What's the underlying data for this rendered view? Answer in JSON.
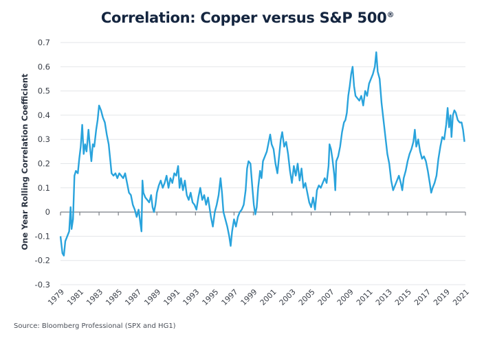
{
  "title": "Correlation: Copper versus S&P 500",
  "title_mark": "®",
  "source": "Source: Bloomberg Professional (SPX and HG1)",
  "line_color": "#29a3dc",
  "chart_data": {
    "type": "line",
    "title": "Correlation: Copper versus S&P 500®",
    "xlabel": "",
    "ylabel": "One Year Rolling Correlation Coefficient",
    "ylim": [
      -0.3,
      0.7
    ],
    "xlim": [
      1979,
      2021
    ],
    "yticks": [
      "0.7",
      "0.6",
      "0.5",
      "0.4",
      "0.3",
      "0.2",
      "0.1",
      "0",
      "-0.1",
      "-0.2",
      "-0.3"
    ],
    "ytick_values": [
      0.7,
      0.6,
      0.5,
      0.4,
      0.3,
      0.2,
      0.1,
      0,
      -0.1,
      -0.2,
      -0.3
    ],
    "xticks": [
      "1979",
      "1981",
      "1983",
      "1985",
      "1987",
      "1989",
      "1991",
      "1993",
      "1995",
      "1997",
      "1999",
      "2001",
      "2003",
      "2005",
      "2007",
      "2009",
      "2011",
      "2013",
      "2015",
      "2017",
      "2019",
      "2021"
    ],
    "grid": true,
    "legend": "none",
    "series": [
      {
        "name": "One Year Rolling Correlation (Copper vs S&P 500)",
        "points": [
          [
            1979.0,
            -0.1
          ],
          [
            1979.2,
            -0.17
          ],
          [
            1979.35,
            -0.18
          ],
          [
            1979.5,
            -0.12
          ],
          [
            1979.7,
            -0.1
          ],
          [
            1979.9,
            -0.08
          ],
          [
            1980.05,
            0.02
          ],
          [
            1980.15,
            -0.07
          ],
          [
            1980.3,
            -0.03
          ],
          [
            1980.45,
            0.15
          ],
          [
            1980.6,
            0.17
          ],
          [
            1980.8,
            0.16
          ],
          [
            1980.95,
            0.22
          ],
          [
            1981.1,
            0.27
          ],
          [
            1981.25,
            0.36
          ],
          [
            1981.4,
            0.24
          ],
          [
            1981.55,
            0.28
          ],
          [
            1981.7,
            0.25
          ],
          [
            1981.9,
            0.34
          ],
          [
            1982.05,
            0.27
          ],
          [
            1982.2,
            0.21
          ],
          [
            1982.35,
            0.28
          ],
          [
            1982.5,
            0.27
          ],
          [
            1982.7,
            0.34
          ],
          [
            1982.85,
            0.38
          ],
          [
            1983.0,
            0.44
          ],
          [
            1983.2,
            0.42
          ],
          [
            1983.4,
            0.39
          ],
          [
            1983.6,
            0.37
          ],
          [
            1983.8,
            0.32
          ],
          [
            1984.0,
            0.28
          ],
          [
            1984.15,
            0.22
          ],
          [
            1984.3,
            0.16
          ],
          [
            1984.5,
            0.15
          ],
          [
            1984.7,
            0.16
          ],
          [
            1984.9,
            0.14
          ],
          [
            1985.1,
            0.16
          ],
          [
            1985.3,
            0.15
          ],
          [
            1985.5,
            0.14
          ],
          [
            1985.7,
            0.16
          ],
          [
            1985.9,
            0.12
          ],
          [
            1986.1,
            0.08
          ],
          [
            1986.3,
            0.07
          ],
          [
            1986.5,
            0.03
          ],
          [
            1986.7,
            0.01
          ],
          [
            1986.9,
            -0.02
          ],
          [
            1987.1,
            0.01
          ],
          [
            1987.3,
            -0.05
          ],
          [
            1987.4,
            -0.08
          ],
          [
            1987.5,
            0.13
          ],
          [
            1987.6,
            0.08
          ],
          [
            1987.8,
            0.06
          ],
          [
            1988.0,
            0.05
          ],
          [
            1988.2,
            0.04
          ],
          [
            1988.4,
            0.07
          ],
          [
            1988.55,
            0.02
          ],
          [
            1988.7,
            0.0
          ],
          [
            1988.85,
            0.03
          ],
          [
            1989.0,
            0.08
          ],
          [
            1989.2,
            0.11
          ],
          [
            1989.4,
            0.13
          ],
          [
            1989.6,
            0.1
          ],
          [
            1989.8,
            0.12
          ],
          [
            1990.0,
            0.15
          ],
          [
            1990.2,
            0.1
          ],
          [
            1990.4,
            0.14
          ],
          [
            1990.6,
            0.12
          ],
          [
            1990.8,
            0.16
          ],
          [
            1991.0,
            0.15
          ],
          [
            1991.2,
            0.19
          ],
          [
            1991.35,
            0.1
          ],
          [
            1991.5,
            0.14
          ],
          [
            1991.7,
            0.09
          ],
          [
            1991.9,
            0.13
          ],
          [
            1992.1,
            0.07
          ],
          [
            1992.3,
            0.05
          ],
          [
            1992.5,
            0.08
          ],
          [
            1992.7,
            0.04
          ],
          [
            1992.9,
            0.03
          ],
          [
            1993.1,
            0.01
          ],
          [
            1993.3,
            0.06
          ],
          [
            1993.5,
            0.1
          ],
          [
            1993.7,
            0.05
          ],
          [
            1993.9,
            0.07
          ],
          [
            1994.1,
            0.03
          ],
          [
            1994.3,
            0.06
          ],
          [
            1994.45,
            0.02
          ],
          [
            1994.6,
            -0.02
          ],
          [
            1994.8,
            -0.06
          ],
          [
            1995.0,
            0.0
          ],
          [
            1995.2,
            0.03
          ],
          [
            1995.4,
            0.07
          ],
          [
            1995.6,
            0.14
          ],
          [
            1995.75,
            0.08
          ],
          [
            1995.9,
            0.0
          ],
          [
            1996.1,
            -0.03
          ],
          [
            1996.3,
            -0.06
          ],
          [
            1996.5,
            -0.1
          ],
          [
            1996.65,
            -0.14
          ],
          [
            1996.8,
            -0.08
          ],
          [
            1997.0,
            -0.03
          ],
          [
            1997.2,
            -0.06
          ],
          [
            1997.4,
            -0.02
          ],
          [
            1997.6,
            0.0
          ],
          [
            1997.8,
            0.01
          ],
          [
            1998.0,
            0.03
          ],
          [
            1998.2,
            0.09
          ],
          [
            1998.35,
            0.18
          ],
          [
            1998.5,
            0.21
          ],
          [
            1998.7,
            0.2
          ],
          [
            1998.9,
            0.1
          ],
          [
            1999.05,
            0.03
          ],
          [
            1999.2,
            -0.01
          ],
          [
            1999.35,
            0.02
          ],
          [
            1999.5,
            0.1
          ],
          [
            1999.7,
            0.17
          ],
          [
            1999.85,
            0.14
          ],
          [
            2000.0,
            0.21
          ],
          [
            2000.2,
            0.23
          ],
          [
            2000.4,
            0.25
          ],
          [
            2000.6,
            0.29
          ],
          [
            2000.75,
            0.32
          ],
          [
            2000.9,
            0.28
          ],
          [
            2001.1,
            0.26
          ],
          [
            2001.3,
            0.2
          ],
          [
            2001.5,
            0.16
          ],
          [
            2001.7,
            0.24
          ],
          [
            2001.85,
            0.3
          ],
          [
            2002.0,
            0.33
          ],
          [
            2002.2,
            0.27
          ],
          [
            2002.4,
            0.29
          ],
          [
            2002.6,
            0.24
          ],
          [
            2002.8,
            0.17
          ],
          [
            2003.0,
            0.12
          ],
          [
            2003.2,
            0.19
          ],
          [
            2003.4,
            0.15
          ],
          [
            2003.6,
            0.2
          ],
          [
            2003.8,
            0.13
          ],
          [
            2004.0,
            0.18
          ],
          [
            2004.2,
            0.1
          ],
          [
            2004.4,
            0.12
          ],
          [
            2004.6,
            0.08
          ],
          [
            2004.8,
            0.04
          ],
          [
            2005.0,
            0.02
          ],
          [
            2005.2,
            0.06
          ],
          [
            2005.4,
            0.01
          ],
          [
            2005.6,
            0.09
          ],
          [
            2005.8,
            0.11
          ],
          [
            2006.0,
            0.1
          ],
          [
            2006.2,
            0.12
          ],
          [
            2006.4,
            0.14
          ],
          [
            2006.6,
            0.12
          ],
          [
            2006.8,
            0.19
          ],
          [
            2006.9,
            0.28
          ],
          [
            2007.05,
            0.26
          ],
          [
            2007.2,
            0.22
          ],
          [
            2007.4,
            0.15
          ],
          [
            2007.5,
            0.09
          ],
          [
            2007.6,
            0.21
          ],
          [
            2007.8,
            0.23
          ],
          [
            2008.0,
            0.27
          ],
          [
            2008.2,
            0.33
          ],
          [
            2008.4,
            0.37
          ],
          [
            2008.55,
            0.38
          ],
          [
            2008.7,
            0.41
          ],
          [
            2008.85,
            0.48
          ],
          [
            2009.0,
            0.52
          ],
          [
            2009.15,
            0.57
          ],
          [
            2009.3,
            0.6
          ],
          [
            2009.45,
            0.52
          ],
          [
            2009.6,
            0.48
          ],
          [
            2009.8,
            0.47
          ],
          [
            2010.0,
            0.46
          ],
          [
            2010.2,
            0.48
          ],
          [
            2010.4,
            0.44
          ],
          [
            2010.6,
            0.5
          ],
          [
            2010.8,
            0.48
          ],
          [
            2011.0,
            0.53
          ],
          [
            2011.2,
            0.55
          ],
          [
            2011.4,
            0.57
          ],
          [
            2011.6,
            0.6
          ],
          [
            2011.75,
            0.66
          ],
          [
            2011.9,
            0.58
          ],
          [
            2012.1,
            0.55
          ],
          [
            2012.3,
            0.45
          ],
          [
            2012.5,
            0.38
          ],
          [
            2012.7,
            0.31
          ],
          [
            2012.9,
            0.24
          ],
          [
            2013.1,
            0.2
          ],
          [
            2013.3,
            0.13
          ],
          [
            2013.5,
            0.09
          ],
          [
            2013.7,
            0.11
          ],
          [
            2013.9,
            0.13
          ],
          [
            2014.1,
            0.15
          ],
          [
            2014.3,
            0.12
          ],
          [
            2014.45,
            0.09
          ],
          [
            2014.6,
            0.14
          ],
          [
            2014.8,
            0.17
          ],
          [
            2015.0,
            0.21
          ],
          [
            2015.2,
            0.24
          ],
          [
            2015.4,
            0.26
          ],
          [
            2015.6,
            0.29
          ],
          [
            2015.75,
            0.34
          ],
          [
            2015.9,
            0.27
          ],
          [
            2016.1,
            0.3
          ],
          [
            2016.3,
            0.25
          ],
          [
            2016.5,
            0.22
          ],
          [
            2016.7,
            0.23
          ],
          [
            2016.9,
            0.21
          ],
          [
            2017.1,
            0.17
          ],
          [
            2017.3,
            0.12
          ],
          [
            2017.45,
            0.08
          ],
          [
            2017.6,
            0.1
          ],
          [
            2017.8,
            0.12
          ],
          [
            2018.0,
            0.15
          ],
          [
            2018.2,
            0.22
          ],
          [
            2018.4,
            0.27
          ],
          [
            2018.6,
            0.31
          ],
          [
            2018.8,
            0.3
          ],
          [
            2019.0,
            0.36
          ],
          [
            2019.15,
            0.43
          ],
          [
            2019.3,
            0.35
          ],
          [
            2019.45,
            0.4
          ],
          [
            2019.55,
            0.31
          ],
          [
            2019.7,
            0.4
          ],
          [
            2019.85,
            0.42
          ],
          [
            2020.0,
            0.41
          ],
          [
            2020.2,
            0.38
          ],
          [
            2020.4,
            0.37
          ],
          [
            2020.6,
            0.37
          ],
          [
            2020.75,
            0.34
          ],
          [
            2020.9,
            0.29
          ]
        ]
      }
    ]
  }
}
